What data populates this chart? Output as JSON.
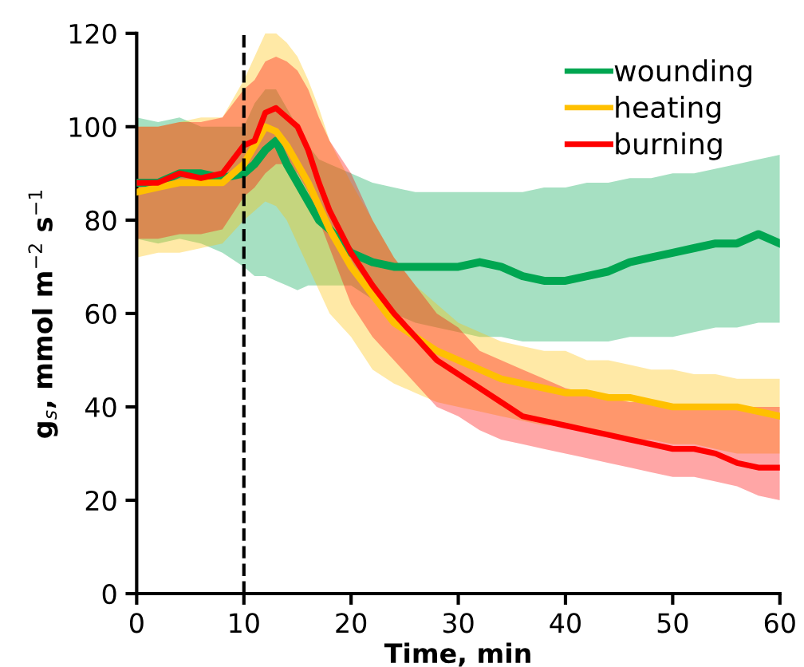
{
  "chart_data": {
    "type": "line",
    "xlabel": "Time, min",
    "ylabel": "g$_{s}$, mmol m$^{−2}$ s$^{−1}$",
    "x": [
      0,
      2,
      4,
      6,
      8,
      10,
      11,
      12,
      13,
      14,
      15,
      16,
      17,
      18,
      20,
      22,
      24,
      26,
      28,
      30,
      32,
      34,
      36,
      38,
      40,
      42,
      44,
      46,
      48,
      50,
      52,
      54,
      56,
      58,
      60
    ],
    "series": [
      {
        "name": "wounding",
        "color": "#00a651",
        "values": [
          88,
          88,
          90,
          90,
          89,
          90,
          92,
          95,
          97,
          92,
          88,
          84,
          80,
          78,
          73,
          71,
          70,
          70,
          70,
          70,
          71,
          70,
          68,
          67,
          67,
          68,
          69,
          71,
          72,
          73,
          74,
          75,
          75,
          77,
          75
        ],
        "lower": [
          76,
          75,
          76,
          75,
          73,
          70,
          68,
          68,
          67,
          66,
          65,
          66,
          66,
          66,
          66,
          63,
          60,
          58,
          57,
          56,
          55,
          55,
          54,
          54,
          54,
          54,
          54,
          55,
          55,
          55,
          56,
          57,
          57,
          58,
          58
        ],
        "upper": [
          102,
          101,
          102,
          100,
          100,
          100,
          105,
          108,
          108,
          104,
          100,
          96,
          93,
          92,
          90,
          88,
          87,
          86,
          86,
          86,
          86,
          86,
          86,
          87,
          87,
          88,
          88,
          89,
          89,
          90,
          90,
          91,
          92,
          93,
          94
        ]
      },
      {
        "name": "heating",
        "color": "#ffc000",
        "values": [
          86,
          87,
          88,
          88,
          88,
          92,
          96,
          100,
          99,
          96,
          92,
          88,
          83,
          78,
          70,
          64,
          58,
          55,
          52,
          50,
          48,
          46,
          45,
          44,
          43,
          43,
          42,
          42,
          41,
          40,
          40,
          40,
          40,
          39,
          38
        ],
        "lower": [
          72,
          73,
          73,
          74,
          75,
          80,
          82,
          84,
          83,
          80,
          75,
          70,
          65,
          60,
          55,
          48,
          45,
          43,
          41,
          40,
          39,
          38,
          37,
          36,
          36,
          35,
          34,
          33,
          33,
          32,
          32,
          31,
          30,
          30,
          30
        ],
        "upper": [
          100,
          100,
          101,
          102,
          102,
          110,
          115,
          120,
          120,
          118,
          115,
          110,
          104,
          97,
          88,
          80,
          72,
          66,
          62,
          58,
          56,
          54,
          53,
          52,
          52,
          50,
          50,
          49,
          48,
          48,
          47,
          47,
          46,
          46,
          46
        ]
      },
      {
        "name": "burning",
        "color": "#ff0000",
        "values": [
          88,
          88,
          90,
          89,
          90,
          96,
          97,
          103,
          104,
          102,
          100,
          95,
          88,
          82,
          73,
          66,
          60,
          55,
          50,
          47,
          44,
          41,
          38,
          37,
          36,
          35,
          34,
          33,
          32,
          31,
          31,
          30,
          28,
          27,
          27
        ],
        "lower": [
          76,
          76,
          77,
          77,
          78,
          85,
          87,
          90,
          92,
          92,
          90,
          86,
          80,
          74,
          62,
          55,
          50,
          45,
          40,
          38,
          35,
          33,
          32,
          31,
          30,
          29,
          28,
          27,
          26,
          25,
          25,
          24,
          23,
          21,
          20
        ],
        "upper": [
          100,
          100,
          101,
          101,
          102,
          108,
          110,
          114,
          115,
          114,
          112,
          108,
          102,
          97,
          90,
          80,
          72,
          66,
          60,
          57,
          52,
          50,
          48,
          46,
          44,
          43,
          42,
          41,
          41,
          40,
          40,
          40,
          40,
          40,
          40
        ]
      }
    ],
    "xlim": [
      0,
      60
    ],
    "xticks": [
      0,
      10,
      20,
      30,
      40,
      50,
      60
    ],
    "ylim": [
      0,
      120
    ],
    "yticks": [
      0,
      20,
      40,
      60,
      80,
      100,
      120
    ],
    "ref_lines": [
      {
        "axis": "x",
        "value": 10,
        "color": "#000000",
        "line_style": "dashed"
      }
    ],
    "grid": false,
    "legend": "top right",
    "marker": "none",
    "line_style": "solid"
  }
}
